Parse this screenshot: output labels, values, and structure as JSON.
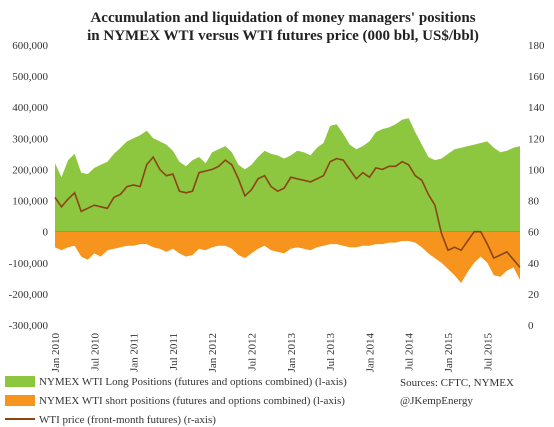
{
  "chart_data": {
    "type": "area",
    "title": [
      "Accumulation and liquidation of  money managers' positions",
      "in NYMEX WTI versus WTI futures price (000 bbl, US$/bbl)"
    ],
    "y_left": {
      "min": -300000,
      "max": 600000,
      "ticks": [
        -300000,
        -200000,
        -100000,
        0,
        100000,
        200000,
        300000,
        400000,
        500000,
        600000
      ],
      "tick_labels": [
        "-300,000",
        "-200,000",
        "-100,000",
        "0",
        "100,000",
        "200,000",
        "300,000",
        "400,000",
        "500,000",
        "600,000"
      ]
    },
    "y_right": {
      "min": 0,
      "max": 180,
      "ticks": [
        0,
        20,
        40,
        60,
        80,
        100,
        120,
        140,
        160,
        180
      ],
      "tick_labels": [
        "0",
        "20",
        "40",
        "60",
        "80",
        "100",
        "120",
        "140",
        "160",
        "180"
      ]
    },
    "x_axis": {
      "start": "2010-01",
      "end": "2015-12",
      "tick_labels": [
        "Jan 2010",
        "Jul 2010",
        "Jan 2011",
        "Jul 2011",
        "Jan 2012",
        "Jul 2012",
        "Jan 2013",
        "Jul 2013",
        "Jan 2014",
        "Jul 2014",
        "Jan 2015",
        "Jul 2015"
      ]
    },
    "months": [
      "2010-01",
      "2010-02",
      "2010-03",
      "2010-04",
      "2010-05",
      "2010-06",
      "2010-07",
      "2010-08",
      "2010-09",
      "2010-10",
      "2010-11",
      "2010-12",
      "2011-01",
      "2011-02",
      "2011-03",
      "2011-04",
      "2011-05",
      "2011-06",
      "2011-07",
      "2011-08",
      "2011-09",
      "2011-10",
      "2011-11",
      "2011-12",
      "2012-01",
      "2012-02",
      "2012-03",
      "2012-04",
      "2012-05",
      "2012-06",
      "2012-07",
      "2012-08",
      "2012-09",
      "2012-10",
      "2012-11",
      "2012-12",
      "2013-01",
      "2013-02",
      "2013-03",
      "2013-04",
      "2013-05",
      "2013-06",
      "2013-07",
      "2013-08",
      "2013-09",
      "2013-10",
      "2013-11",
      "2013-12",
      "2014-01",
      "2014-02",
      "2014-03",
      "2014-04",
      "2014-05",
      "2014-06",
      "2014-07",
      "2014-08",
      "2014-09",
      "2014-10",
      "2014-11",
      "2014-12",
      "2015-01",
      "2015-02",
      "2015-03",
      "2015-04",
      "2015-05",
      "2015-06",
      "2015-07",
      "2015-08",
      "2015-09",
      "2015-10",
      "2015-11",
      "2015-12"
    ],
    "series": [
      {
        "name": "NYMEX WTI Long Positions (futures and options combined) (l-axis)",
        "axis": "left",
        "color": "#8dc63f",
        "values": [
          220000,
          175000,
          230000,
          250000,
          190000,
          185000,
          205000,
          215000,
          225000,
          250000,
          270000,
          290000,
          300000,
          310000,
          325000,
          300000,
          290000,
          280000,
          260000,
          225000,
          210000,
          230000,
          240000,
          220000,
          255000,
          265000,
          275000,
          255000,
          215000,
          200000,
          215000,
          240000,
          260000,
          250000,
          245000,
          235000,
          245000,
          260000,
          255000,
          245000,
          270000,
          285000,
          340000,
          345000,
          315000,
          280000,
          265000,
          275000,
          290000,
          320000,
          330000,
          335000,
          345000,
          360000,
          365000,
          320000,
          280000,
          240000,
          230000,
          235000,
          250000,
          265000,
          270000,
          275000,
          280000,
          285000,
          290000,
          270000,
          255000,
          260000,
          270000,
          275000
        ]
      },
      {
        "name": "NYMEX WTI short positions (futures and options combined) (l-axis)",
        "axis": "left",
        "color": "#f7941d",
        "values": [
          -50000,
          -60000,
          -50000,
          -45000,
          -80000,
          -90000,
          -70000,
          -80000,
          -60000,
          -55000,
          -50000,
          -45000,
          -45000,
          -40000,
          -40000,
          -50000,
          -55000,
          -65000,
          -55000,
          -70000,
          -80000,
          -75000,
          -55000,
          -60000,
          -50000,
          -45000,
          -45000,
          -55000,
          -75000,
          -85000,
          -70000,
          -55000,
          -45000,
          -60000,
          -65000,
          -70000,
          -55000,
          -50000,
          -55000,
          -60000,
          -50000,
          -45000,
          -40000,
          -40000,
          -45000,
          -50000,
          -50000,
          -45000,
          -45000,
          -40000,
          -40000,
          -35000,
          -35000,
          -30000,
          -30000,
          -35000,
          -50000,
          -70000,
          -85000,
          -100000,
          -120000,
          -140000,
          -165000,
          -130000,
          -100000,
          -80000,
          -100000,
          -140000,
          -145000,
          -125000,
          -115000,
          -155000
        ]
      },
      {
        "name": "WTI price (front-month futures) (r-axis)",
        "axis": "right",
        "color": "#8b4513",
        "values": [
          82,
          76,
          81,
          85,
          73,
          75,
          77,
          76,
          75,
          82,
          84,
          89,
          90,
          89,
          103,
          108,
          100,
          96,
          97,
          86,
          85,
          86,
          98,
          99,
          100,
          102,
          106,
          103,
          94,
          83,
          87,
          94,
          96,
          89,
          86,
          88,
          95,
          94,
          93,
          92,
          94,
          96,
          105,
          107,
          106,
          100,
          94,
          98,
          95,
          101,
          100,
          102,
          102,
          105,
          103,
          96,
          93,
          84,
          77,
          59,
          48,
          50,
          48,
          54,
          60,
          60,
          52,
          43,
          45,
          47,
          42,
          37
        ]
      }
    ],
    "annotations": [
      "Sources: CFTC, NYMEX",
      "@JKempEnergy"
    ],
    "grid": false,
    "legend_position": "bottom-left"
  }
}
